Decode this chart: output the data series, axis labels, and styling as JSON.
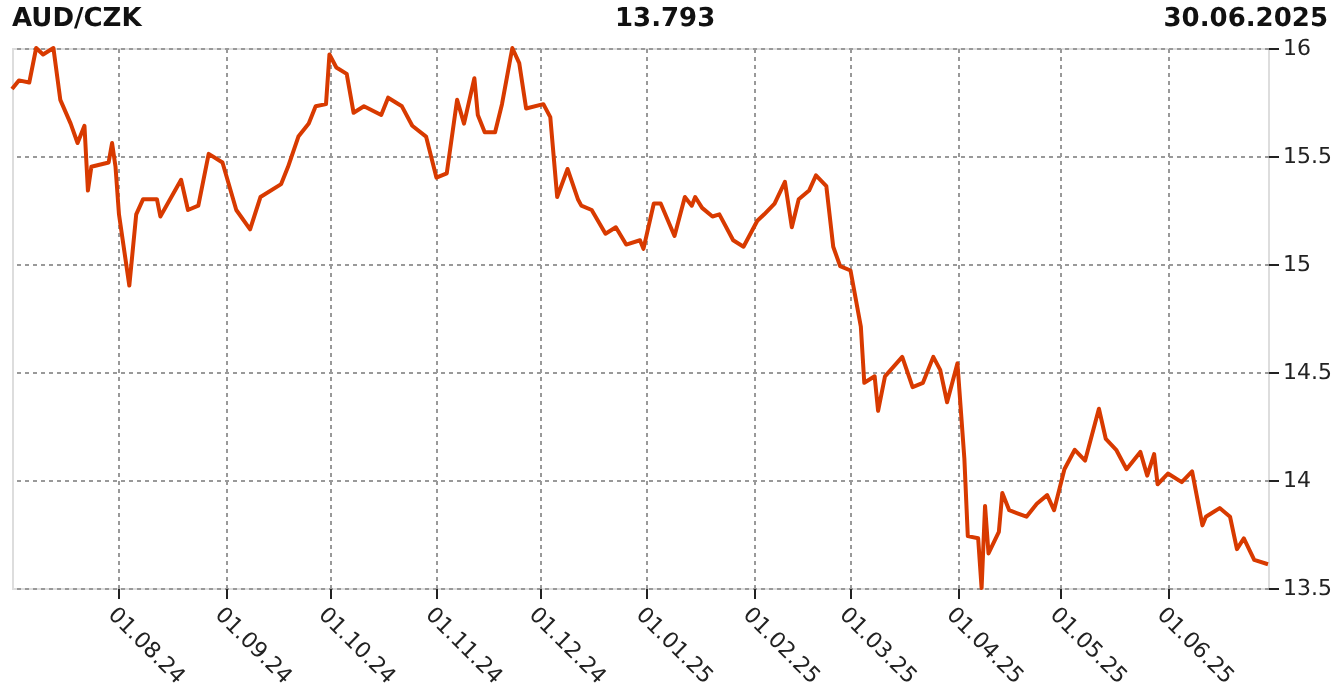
{
  "chart_data": {
    "type": "line",
    "title": "AUD/CZK",
    "annotations": [
      "13.793",
      "30.06.2025"
    ],
    "x": [
      "2024-07-01",
      "2024-07-03",
      "2024-07-06",
      "2024-07-08",
      "2024-07-10",
      "2024-07-13",
      "2024-07-15",
      "2024-07-18",
      "2024-07-20",
      "2024-07-22",
      "2024-07-23",
      "2024-07-24",
      "2024-07-29",
      "2024-07-30",
      "2024-07-31",
      "2024-08-01",
      "2024-08-04",
      "2024-08-06",
      "2024-08-08",
      "2024-08-12",
      "2024-08-13",
      "2024-08-19",
      "2024-08-21",
      "2024-08-24",
      "2024-08-27",
      "2024-08-31",
      "2024-09-04",
      "2024-09-08",
      "2024-09-11",
      "2024-09-17",
      "2024-09-19",
      "2024-09-22",
      "2024-09-25",
      "2024-09-27",
      "2024-09-30",
      "2024-10-01",
      "2024-10-03",
      "2024-10-06",
      "2024-10-08",
      "2024-10-11",
      "2024-10-16",
      "2024-10-18",
      "2024-10-22",
      "2024-10-25",
      "2024-10-29",
      "2024-11-01",
      "2024-11-04",
      "2024-11-07",
      "2024-11-09",
      "2024-11-12",
      "2024-11-13",
      "2024-11-15",
      "2024-11-18",
      "2024-11-20",
      "2024-11-23",
      "2024-11-25",
      "2024-11-27",
      "2024-12-02",
      "2024-12-04",
      "2024-12-06",
      "2024-12-09",
      "2024-12-12",
      "2024-12-13",
      "2024-12-16",
      "2024-12-20",
      "2024-12-23",
      "2024-12-26",
      "2024-12-30",
      "2024-12-31",
      "2025-01-03",
      "2025-01-05",
      "2025-01-09",
      "2025-01-12",
      "2025-01-14",
      "2025-01-15",
      "2025-01-17",
      "2025-01-20",
      "2025-01-22",
      "2025-01-26",
      "2025-01-29",
      "2025-02-02",
      "2025-02-04",
      "2025-02-07",
      "2025-02-10",
      "2025-02-12",
      "2025-02-14",
      "2025-02-17",
      "2025-02-19",
      "2025-02-22",
      "2025-02-24",
      "2025-02-26",
      "2025-03-01",
      "2025-03-04",
      "2025-03-05",
      "2025-03-08",
      "2025-03-09",
      "2025-03-11",
      "2025-03-16",
      "2025-03-19",
      "2025-03-22",
      "2025-03-25",
      "2025-03-27",
      "2025-03-29",
      "2025-04-01",
      "2025-04-03",
      "2025-04-04",
      "2025-04-07",
      "2025-04-08",
      "2025-04-09",
      "2025-04-10",
      "2025-04-13",
      "2025-04-14",
      "2025-04-16",
      "2025-04-21",
      "2025-04-24",
      "2025-04-27",
      "2025-04-29",
      "2025-05-02",
      "2025-05-05",
      "2025-05-08",
      "2025-05-12",
      "2025-05-14",
      "2025-05-17",
      "2025-05-20",
      "2025-05-24",
      "2025-05-26",
      "2025-05-28",
      "2025-05-29",
      "2025-06-01",
      "2025-06-05",
      "2025-06-08",
      "2025-06-11",
      "2025-06-12",
      "2025-06-16",
      "2025-06-19",
      "2025-06-21",
      "2025-06-23",
      "2025-06-26",
      "2025-06-30"
    ],
    "series": [
      {
        "color": "#d83a00",
        "values": [
          15.81,
          15.85,
          15.84,
          16.0,
          15.97,
          16.0,
          15.76,
          15.65,
          15.56,
          15.64,
          15.34,
          15.45,
          15.47,
          15.56,
          15.45,
          15.23,
          14.9,
          15.23,
          15.3,
          15.3,
          15.22,
          15.39,
          15.25,
          15.27,
          15.51,
          15.47,
          15.25,
          15.16,
          15.31,
          15.37,
          15.45,
          15.59,
          15.65,
          15.73,
          15.74,
          15.97,
          15.91,
          15.88,
          15.7,
          15.73,
          15.69,
          15.77,
          15.73,
          15.64,
          15.59,
          15.4,
          15.42,
          15.76,
          15.65,
          15.86,
          15.69,
          15.61,
          15.61,
          15.74,
          16.0,
          15.93,
          15.72,
          15.74,
          15.68,
          15.31,
          15.44,
          15.3,
          15.27,
          15.25,
          15.14,
          15.17,
          15.09,
          15.11,
          15.07,
          15.28,
          15.28,
          15.13,
          15.31,
          15.27,
          15.31,
          15.26,
          15.22,
          15.23,
          15.11,
          15.08,
          15.2,
          15.23,
          15.28,
          15.38,
          15.17,
          15.3,
          15.34,
          15.41,
          15.36,
          15.08,
          14.99,
          14.97,
          14.71,
          14.45,
          14.48,
          14.32,
          14.48,
          14.57,
          14.43,
          14.45,
          14.57,
          14.51,
          14.36,
          14.54,
          14.1,
          13.74,
          13.73,
          13.5,
          13.88,
          13.66,
          13.76,
          13.94,
          13.86,
          13.83,
          13.89,
          13.93,
          13.86,
          14.05,
          14.14,
          14.09,
          14.33,
          14.19,
          14.14,
          14.05,
          14.13,
          14.02,
          14.12,
          13.98,
          14.03,
          13.99,
          14.04,
          13.79,
          13.83,
          13.87,
          13.83,
          13.68,
          13.73,
          13.63,
          13.61
        ]
      }
    ],
    "xlim": [
      "2024-07-01",
      "2025-06-30"
    ],
    "xticks": [
      {
        "value": "2024-08-01",
        "label": "01.08.24"
      },
      {
        "value": "2024-09-01",
        "label": "01.09.24"
      },
      {
        "value": "2024-10-01",
        "label": "01.10.24"
      },
      {
        "value": "2024-11-01",
        "label": "01.11.24"
      },
      {
        "value": "2024-12-01",
        "label": "01.12.24"
      },
      {
        "value": "2025-01-01",
        "label": "01.01.25"
      },
      {
        "value": "2025-02-01",
        "label": "01.02.25"
      },
      {
        "value": "2025-03-01",
        "label": "01.03.25"
      },
      {
        "value": "2025-04-01",
        "label": "01.04.25"
      },
      {
        "value": "2025-05-01",
        "label": "01.05.25"
      },
      {
        "value": "2025-06-01",
        "label": "01.06.25"
      }
    ],
    "ylim": [
      13.5,
      16
    ],
    "yticks": [
      13.5,
      14,
      14.5,
      15,
      15.5,
      16
    ],
    "grid": true,
    "marker": "none",
    "line_style": "solid"
  }
}
